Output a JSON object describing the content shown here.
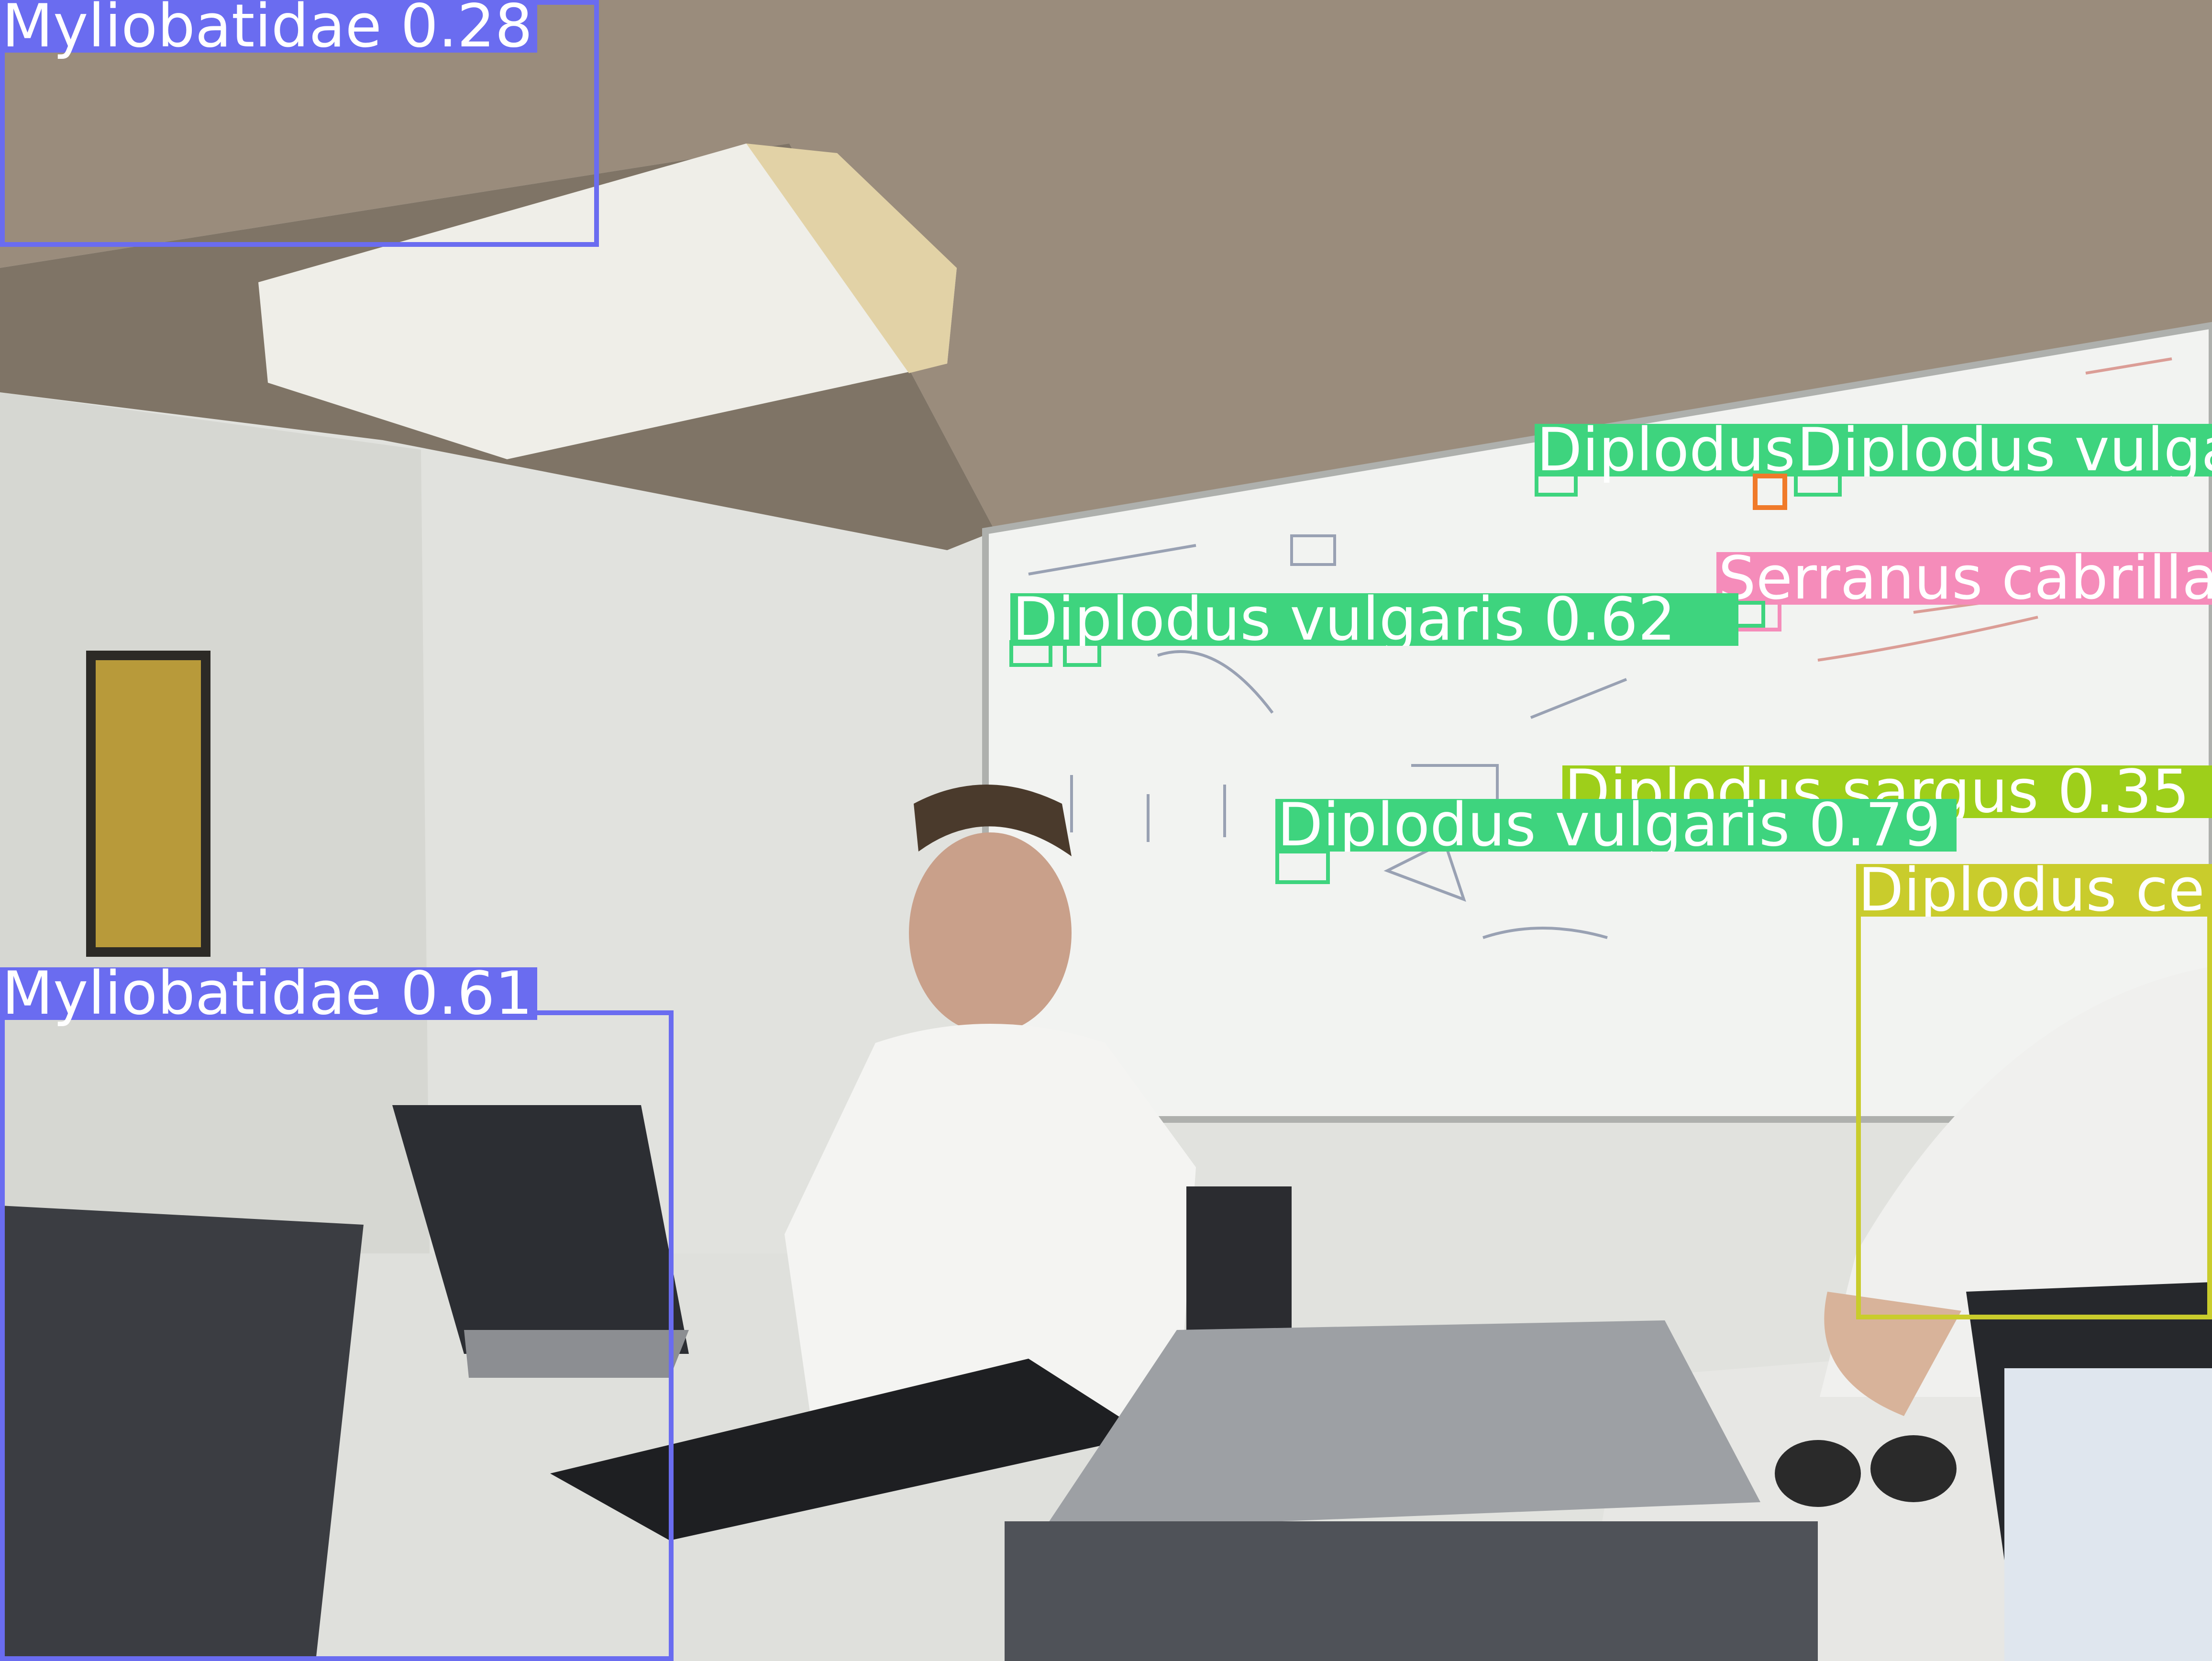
{
  "detections": [
    {
      "label": "Myliobatidae",
      "confidence": "0.28",
      "color": "#6a6cf0"
    },
    {
      "label": "Myliobatidae",
      "confidence": "0.61",
      "color": "#6a6cf0"
    },
    {
      "label": "Diplodus",
      "confidence": "",
      "color": "#3ed47e"
    },
    {
      "label": "Diplodus vulgaris",
      "confidence": "",
      "color": "#3ed47e"
    },
    {
      "label": "Diplodus vulgaris",
      "confidence": "0.62",
      "color": "#3ed47e"
    },
    {
      "label": "Serranus cabrilla",
      "confidence": "",
      "color": "#f58cba"
    },
    {
      "label": "Diplodus sargus",
      "confidence": "0.35",
      "color": "#9ecf1a"
    },
    {
      "label": "Diplodus vulgaris",
      "confidence": "0.79",
      "color": "#3ed47e"
    },
    {
      "label": "Diplodus ce",
      "confidence": "",
      "color": "#c9cc2c"
    }
  ]
}
